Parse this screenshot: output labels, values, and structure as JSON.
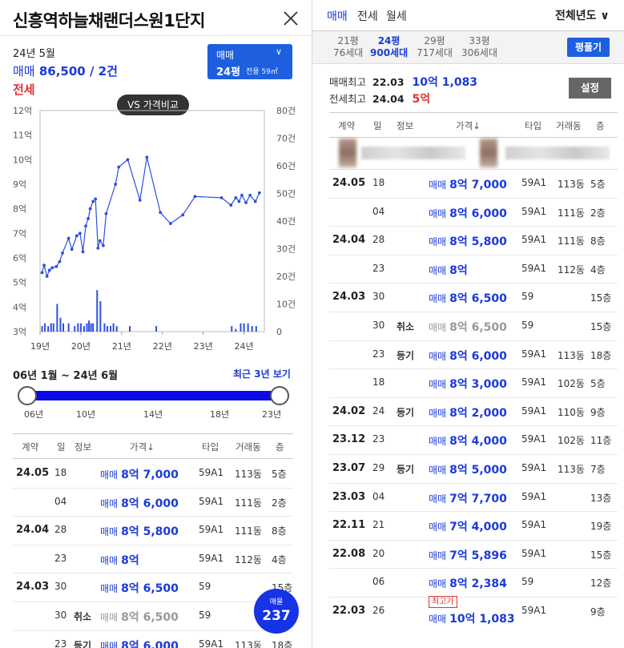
{
  "left": {
    "title": "신흥역하늘채랜더스원1단지",
    "summary": {
      "date": "24년 5월",
      "sale_label": "매매",
      "sale_value": "86,500 / 2건",
      "jeonse_label": "전세"
    },
    "type_selector": {
      "kind": "매매",
      "size": "24평",
      "area": "전용 59㎡"
    },
    "vs_button": "VS 가격비교",
    "chart_data": {
      "type": "line",
      "title": "",
      "left_axis_ticks": [
        "12억",
        "11억",
        "10억",
        "9억",
        "8억",
        "7억",
        "6억",
        "5억",
        "4억",
        "3억"
      ],
      "right_axis_ticks": [
        "80건",
        "70건",
        "60건",
        "50건",
        "40건",
        "30건",
        "20건",
        "10건",
        "0"
      ],
      "x_ticks": [
        "19년",
        "20년",
        "21년",
        "22년",
        "23년",
        "24년"
      ],
      "ylim_price": [
        3,
        12
      ],
      "ylim_volume": [
        0,
        80
      ],
      "xlim_year": [
        2019.0,
        2024.5
      ],
      "series": [
        {
          "type": "line",
          "color": "#2d4fe0",
          "points": [
            [
              2019.05,
              5.4
            ],
            [
              2019.1,
              5.7
            ],
            [
              2019.17,
              5.25
            ],
            [
              2019.23,
              5.5
            ],
            [
              2019.3,
              5.6
            ],
            [
              2019.4,
              5.65
            ],
            [
              2019.48,
              5.85
            ],
            [
              2019.55,
              6.2
            ],
            [
              2019.7,
              6.8
            ],
            [
              2019.78,
              6.35
            ],
            [
              2019.9,
              6.9
            ],
            [
              2019.98,
              7.0
            ],
            [
              2020.05,
              6.25
            ],
            [
              2020.12,
              7.3
            ],
            [
              2020.18,
              7.6
            ],
            [
              2020.23,
              8.0
            ],
            [
              2020.3,
              8.3
            ],
            [
              2020.36,
              8.4
            ],
            [
              2020.42,
              6.4
            ],
            [
              2020.47,
              6.7
            ],
            [
              2020.55,
              6.5
            ],
            [
              2020.62,
              7.8
            ],
            [
              2020.85,
              9.0
            ],
            [
              2020.93,
              9.7
            ],
            [
              2021.15,
              10.0
            ],
            [
              2021.45,
              8.35
            ],
            [
              2021.62,
              10.1
            ],
            [
              2021.95,
              7.85
            ],
            [
              2022.2,
              7.4
            ],
            [
              2022.5,
              7.75
            ],
            [
              2022.8,
              8.5
            ],
            [
              2023.45,
              8.45
            ],
            [
              2023.68,
              8.15
            ],
            [
              2023.8,
              8.45
            ],
            [
              2023.88,
              8.3
            ],
            [
              2023.95,
              8.55
            ],
            [
              2024.05,
              8.25
            ],
            [
              2024.15,
              8.55
            ],
            [
              2024.28,
              8.3
            ],
            [
              2024.38,
              8.65
            ]
          ]
        },
        {
          "type": "bar",
          "color": "#2d4fe0",
          "volumes": [
            [
              2019.05,
              2
            ],
            [
              2019.12,
              3
            ],
            [
              2019.2,
              2
            ],
            [
              2019.27,
              3
            ],
            [
              2019.33,
              3
            ],
            [
              2019.42,
              10
            ],
            [
              2019.5,
              5
            ],
            [
              2019.57,
              3
            ],
            [
              2019.7,
              3
            ],
            [
              2019.85,
              2
            ],
            [
              2019.93,
              3
            ],
            [
              2020.0,
              3
            ],
            [
              2020.08,
              2
            ],
            [
              2020.15,
              3
            ],
            [
              2020.2,
              4
            ],
            [
              2020.25,
              3
            ],
            [
              2020.3,
              3
            ],
            [
              2020.4,
              15
            ],
            [
              2020.48,
              11
            ],
            [
              2020.58,
              3
            ],
            [
              2020.65,
              2
            ],
            [
              2020.73,
              2
            ],
            [
              2020.8,
              3
            ],
            [
              2020.88,
              2
            ],
            [
              2021.2,
              2
            ],
            [
              2021.85,
              2
            ],
            [
              2023.7,
              2
            ],
            [
              2023.8,
              1
            ],
            [
              2023.92,
              3
            ],
            [
              2024.0,
              3
            ],
            [
              2024.1,
              3
            ],
            [
              2024.2,
              2
            ],
            [
              2024.3,
              2
            ]
          ]
        }
      ]
    },
    "range_text": "06년 1월 ~ 24년 6월",
    "recent_link": "최근 3년 보기",
    "slider_ticks": [
      "06년",
      "10년",
      "14년",
      "18년",
      "23년"
    ],
    "table_headers": [
      "계약",
      "일",
      "정보",
      "가격↓",
      "타입",
      "거래동",
      "층"
    ],
    "rows": [
      {
        "ym": "24.05",
        "day": "18",
        "info": "",
        "kind": "매매",
        "price": "8억 7,000",
        "type": "59A1",
        "dong": "113동",
        "floor": "5층",
        "cancel": false
      },
      {
        "ym": "",
        "day": "04",
        "info": "",
        "kind": "매매",
        "price": "8억 6,000",
        "type": "59A1",
        "dong": "111동",
        "floor": "2층",
        "cancel": false
      },
      {
        "ym": "24.04",
        "day": "28",
        "info": "",
        "kind": "매매",
        "price": "8억 5,800",
        "type": "59A1",
        "dong": "111동",
        "floor": "8층",
        "cancel": false
      },
      {
        "ym": "",
        "day": "23",
        "info": "",
        "kind": "매매",
        "price": "8억",
        "type": "59A1",
        "dong": "112동",
        "floor": "4층",
        "cancel": false
      },
      {
        "ym": "24.03",
        "day": "30",
        "info": "",
        "kind": "매매",
        "price": "8억 6,500",
        "type": "59",
        "dong": "",
        "floor": "15층",
        "cancel": false
      },
      {
        "ym": "",
        "day": "30",
        "info": "취소",
        "kind": "매매",
        "price": "8억 6,500",
        "type": "59",
        "dong": "",
        "floor": "15층",
        "cancel": true
      },
      {
        "ym": "",
        "day": "23",
        "info": "등기",
        "kind": "매매",
        "price": "8억 6,000",
        "type": "59A1",
        "dong": "113동",
        "floor": "18층",
        "cancel": false
      }
    ],
    "fab": {
      "label": "매물",
      "count": "237"
    }
  },
  "right": {
    "tabs": [
      "매매",
      "전세",
      "월세"
    ],
    "year_selector": "전체년도 ∨",
    "sizes": [
      {
        "size": "21평",
        "units": "76세대"
      },
      {
        "size": "24평",
        "units": "900세대"
      },
      {
        "size": "29평",
        "units": "717세대"
      },
      {
        "size": "33평",
        "units": "306세대"
      }
    ],
    "floorplan_button": "평풀기",
    "max_sale": {
      "label": "매매최고",
      "date": "22.03",
      "value": "10억 1,083"
    },
    "max_jeonse": {
      "label": "전세최고",
      "date": "24.04",
      "value": "5억"
    },
    "setting_button": "설정",
    "table_headers": [
      "계약",
      "일",
      "정보",
      "가격↓",
      "타입",
      "거래동",
      "층"
    ],
    "rows": [
      {
        "ym": "24.05",
        "day": "18",
        "info": "",
        "kind": "매매",
        "price": "8억 7,000",
        "type": "59A1",
        "dong": "113동",
        "floor": "5층",
        "cancel": false,
        "badge": ""
      },
      {
        "ym": "",
        "day": "04",
        "info": "",
        "kind": "매매",
        "price": "8억 6,000",
        "type": "59A1",
        "dong": "111동",
        "floor": "2층",
        "cancel": false,
        "badge": ""
      },
      {
        "ym": "24.04",
        "day": "28",
        "info": "",
        "kind": "매매",
        "price": "8억 5,800",
        "type": "59A1",
        "dong": "111동",
        "floor": "8층",
        "cancel": false,
        "badge": ""
      },
      {
        "ym": "",
        "day": "23",
        "info": "",
        "kind": "매매",
        "price": "8억",
        "type": "59A1",
        "dong": "112동",
        "floor": "4층",
        "cancel": false,
        "badge": ""
      },
      {
        "ym": "24.03",
        "day": "30",
        "info": "",
        "kind": "매매",
        "price": "8억 6,500",
        "type": "59",
        "dong": "",
        "floor": "15층",
        "cancel": false,
        "badge": ""
      },
      {
        "ym": "",
        "day": "30",
        "info": "취소",
        "kind": "매매",
        "price": "8억 6,500",
        "type": "59",
        "dong": "",
        "floor": "15층",
        "cancel": true,
        "badge": ""
      },
      {
        "ym": "",
        "day": "23",
        "info": "등기",
        "kind": "매매",
        "price": "8억 6,000",
        "type": "59A1",
        "dong": "113동",
        "floor": "18층",
        "cancel": false,
        "badge": ""
      },
      {
        "ym": "",
        "day": "18",
        "info": "",
        "kind": "매매",
        "price": "8억 3,000",
        "type": "59A1",
        "dong": "102동",
        "floor": "5층",
        "cancel": false,
        "badge": ""
      },
      {
        "ym": "24.02",
        "day": "24",
        "info": "등기",
        "kind": "매매",
        "price": "8억 2,000",
        "type": "59A1",
        "dong": "110동",
        "floor": "9층",
        "cancel": false,
        "badge": ""
      },
      {
        "ym": "23.12",
        "day": "23",
        "info": "",
        "kind": "매매",
        "price": "8억 4,000",
        "type": "59A1",
        "dong": "102동",
        "floor": "11층",
        "cancel": false,
        "badge": ""
      },
      {
        "ym": "23.07",
        "day": "29",
        "info": "등기",
        "kind": "매매",
        "price": "8억 5,000",
        "type": "59A1",
        "dong": "113동",
        "floor": "7층",
        "cancel": false,
        "badge": ""
      },
      {
        "ym": "23.03",
        "day": "04",
        "info": "",
        "kind": "매매",
        "price": "7억 7,700",
        "type": "59A1",
        "dong": "",
        "floor": "13층",
        "cancel": false,
        "badge": ""
      },
      {
        "ym": "22.11",
        "day": "21",
        "info": "",
        "kind": "매매",
        "price": "7억 4,000",
        "type": "59A1",
        "dong": "",
        "floor": "19층",
        "cancel": false,
        "badge": ""
      },
      {
        "ym": "22.08",
        "day": "20",
        "info": "",
        "kind": "매매",
        "price": "7억 5,896",
        "type": "59A1",
        "dong": "",
        "floor": "15층",
        "cancel": false,
        "badge": ""
      },
      {
        "ym": "",
        "day": "06",
        "info": "",
        "kind": "매매",
        "price": "8억 2,384",
        "type": "59",
        "dong": "",
        "floor": "12층",
        "cancel": false,
        "badge": ""
      },
      {
        "ym": "22.03",
        "day": "26",
        "info": "",
        "kind": "매매",
        "price": "10억 1,083",
        "type": "59A1",
        "dong": "",
        "floor": "9층",
        "cancel": false,
        "badge": "최고가"
      }
    ]
  }
}
